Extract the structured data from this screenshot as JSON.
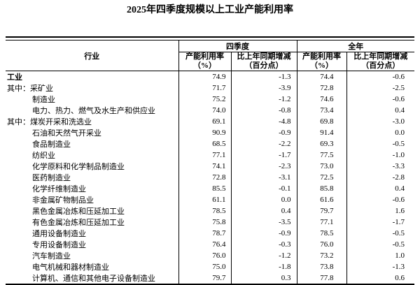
{
  "page": {
    "title": "2025年四季度规模以上工业产能利用率"
  },
  "table": {
    "header": {
      "industry": "行业",
      "q4_group": "四季度",
      "year_group": "全年",
      "rate_line1": "产能利用率",
      "rate_line2": "（%）",
      "change_line1": "比上年同期增减",
      "change_line2": "（百分点）"
    },
    "rows": [
      {
        "label": "工业",
        "q4_rate": "74.9",
        "q4_change": "-1.3",
        "year_rate": "74.4",
        "year_change": "-0.6"
      },
      {
        "label": "其中：采矿业",
        "q4_rate": "71.7",
        "q4_change": "-3.9",
        "year_rate": "72.8",
        "year_change": "-2.5"
      },
      {
        "label": "制造业",
        "q4_rate": "75.2",
        "q4_change": "-1.2",
        "year_rate": "74.6",
        "year_change": "-0.6"
      },
      {
        "label": "电力、热力、燃气及水生产和供应业",
        "q4_rate": "74.0",
        "q4_change": "-0.8",
        "year_rate": "73.4",
        "year_change": "0.4"
      },
      {
        "label": "其中：煤炭开采和洗选业",
        "q4_rate": "69.1",
        "q4_change": "-4.8",
        "year_rate": "69.8",
        "year_change": "-3.0"
      },
      {
        "label": "石油和天然气开采业",
        "q4_rate": "90.9",
        "q4_change": "-0.9",
        "year_rate": "91.4",
        "year_change": "0.0"
      },
      {
        "label": "食品制造业",
        "q4_rate": "68.5",
        "q4_change": "-2.2",
        "year_rate": "69.3",
        "year_change": "-0.5"
      },
      {
        "label": "纺织业",
        "q4_rate": "77.1",
        "q4_change": "-1.7",
        "year_rate": "77.5",
        "year_change": "-1.0"
      },
      {
        "label": "化学原料和化学制品制造业",
        "q4_rate": "74.1",
        "q4_change": "-2.3",
        "year_rate": "73.0",
        "year_change": "-3.3"
      },
      {
        "label": "医药制造业",
        "q4_rate": "72.8",
        "q4_change": "-3.1",
        "year_rate": "72.5",
        "year_change": "-2.8"
      },
      {
        "label": "化学纤维制造业",
        "q4_rate": "85.5",
        "q4_change": "-0.1",
        "year_rate": "85.8",
        "year_change": "0.4"
      },
      {
        "label": "非金属矿物制品业",
        "q4_rate": "61.1",
        "q4_change": "0.0",
        "year_rate": "61.6",
        "year_change": "-0.6"
      },
      {
        "label": "黑色金属冶炼和压延加工业",
        "q4_rate": "78.5",
        "q4_change": "0.4",
        "year_rate": "79.7",
        "year_change": "1.6"
      },
      {
        "label": "有色金属冶炼和压延加工业",
        "q4_rate": "75.8",
        "q4_change": "-3.5",
        "year_rate": "77.1",
        "year_change": "-1.7"
      },
      {
        "label": "通用设备制造业",
        "q4_rate": "78.7",
        "q4_change": "-0.9",
        "year_rate": "78.5",
        "year_change": "-0.5"
      },
      {
        "label": "专用设备制造业",
        "q4_rate": "76.4",
        "q4_change": "-0.3",
        "year_rate": "76.0",
        "year_change": "-0.5"
      },
      {
        "label": "汽车制造业",
        "q4_rate": "76.0",
        "q4_change": "-1.2",
        "year_rate": "73.2",
        "year_change": "1.0"
      },
      {
        "label": "电气机械和器材制造业",
        "q4_rate": "75.0",
        "q4_change": "-1.8",
        "year_rate": "73.8",
        "year_change": "-1.3"
      },
      {
        "label": "计算机、通信和其他电子设备制造业",
        "q4_rate": "79.7",
        "q4_change": "0.3",
        "year_rate": "77.8",
        "year_change": "0.6"
      }
    ],
    "colors": {
      "border": "#000000",
      "text": "#000000",
      "background": "#ffffff"
    }
  }
}
